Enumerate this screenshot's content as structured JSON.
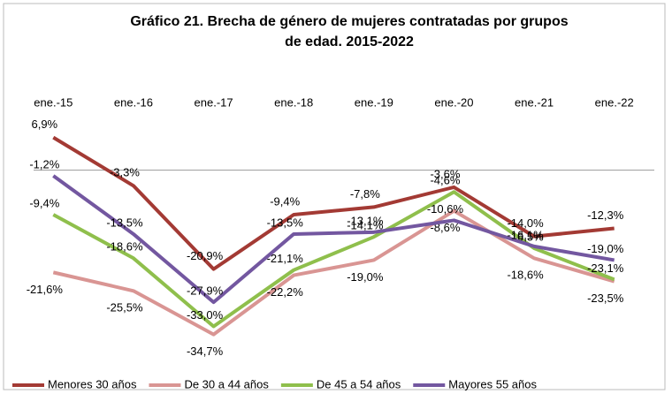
{
  "chart_data": {
    "type": "line",
    "title": [
      "Gráfico 21. Brecha de género de mujeres contratadas por grupos",
      "de edad. 2015-2022"
    ],
    "categories": [
      "ene.-15",
      "ene.-16",
      "ene.-17",
      "ene.-18",
      "ene.-19",
      "ene.-20",
      "ene.-21",
      "ene.-22"
    ],
    "ylim": [
      -40,
      10
    ],
    "series": [
      {
        "name": "Menores 30 años",
        "color": "#a33a34",
        "values": [
          6.9,
          -3.3,
          -20.9,
          -9.4,
          -7.8,
          -3.6,
          -14.0,
          -12.3
        ],
        "value_labels": [
          "6,9%",
          "-3,3%",
          "-20,9%",
          "-9,4%",
          "-7,8%",
          "-3,6%",
          "-14,0%",
          "-12,3%"
        ]
      },
      {
        "name": "De 30 a 44 años",
        "color": "#d99593",
        "values": [
          -21.6,
          -25.5,
          -34.7,
          -22.2,
          -19.0,
          -8.6,
          -18.6,
          -23.5
        ],
        "value_labels": [
          "-21,6%",
          "-25,5%",
          "-34,7%",
          "-22,2%",
          "-19,0%",
          "-8,6%",
          "-18,6%",
          "-23,5%"
        ]
      },
      {
        "name": "De 45 a 54 años",
        "color": "#8fbf4c",
        "values": [
          -9.4,
          -18.6,
          -33.0,
          -21.1,
          -14.1,
          -4.6,
          -16.5,
          -23.1
        ],
        "value_labels": [
          "-9,4%",
          "-18,6%",
          "-33,0%",
          "-21,1%",
          "-14,1%",
          "-4,6%",
          "-16,5%",
          "-23,1%"
        ]
      },
      {
        "name": "Mayores 55 años",
        "color": "#7357a0",
        "values": [
          -1.2,
          -13.5,
          -27.9,
          -13.5,
          -13.1,
          -10.6,
          -16.1,
          -19.0
        ],
        "value_labels": [
          "-1,2%",
          "-13,5%",
          "-27,9%",
          "-13,5%",
          "-13,1%",
          "-10,6%",
          "-16,1%",
          "-19,0%"
        ]
      }
    ]
  }
}
